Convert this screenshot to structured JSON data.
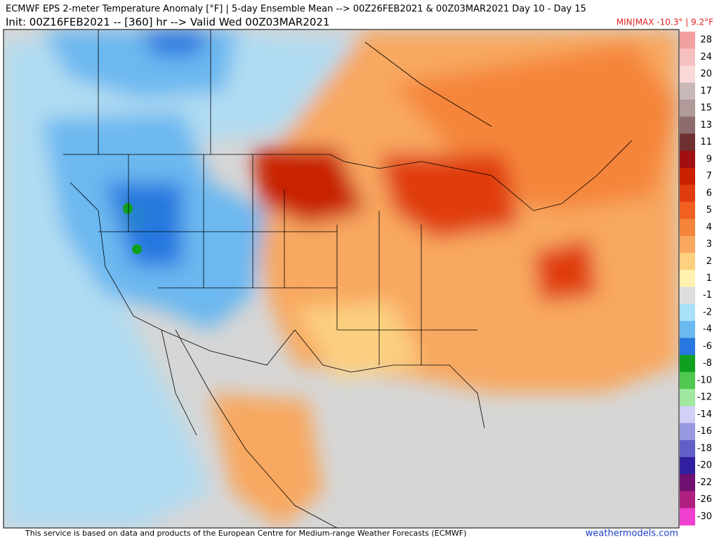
{
  "header": {
    "line1": "ECMWF EPS 2-meter Temperature Anomaly [°F] | 5-day Ensemble Mean --> 00Z26FEB2021 & 00Z03MAR2021   Day 10 - Day 15",
    "line2": "Init: 00Z16FEB2021 -- [360] hr --> Valid Wed 00Z03MAR2021",
    "minmax": "MIN|MAX -10.3° | 9.2°F"
  },
  "colorbar": {
    "levels": [
      28,
      24,
      20,
      17,
      15,
      13,
      11,
      9,
      7,
      6,
      5,
      4,
      3,
      2,
      1,
      -1,
      -2,
      -4,
      -6,
      -8,
      -10,
      -12,
      -14,
      -16,
      -18,
      -20,
      -22,
      -26,
      -30
    ],
    "colors": [
      "#f3a0a0",
      "#f7c0c0",
      "#fad8d8",
      "#c8b8b8",
      "#b09a9a",
      "#8c6c6c",
      "#6e3030",
      "#a01010",
      "#c82000",
      "#e03c10",
      "#f06020",
      "#f5853a",
      "#f8a860",
      "#fcd080",
      "#fff2b0",
      "#dedede",
      "#a8e0f8",
      "#6cb8f0",
      "#2878e0",
      "#10a020",
      "#50c850",
      "#a0e8a0",
      "#d0d0f8",
      "#9898e0",
      "#6060c8",
      "#3020a0",
      "#701070",
      "#b02080",
      "#f040d0"
    ]
  },
  "footer": {
    "credit": "This service is based on data and products of the European Centre for Medium-range Weather Forecasts (ECMWF)",
    "watermark": "weathermodels.com"
  }
}
